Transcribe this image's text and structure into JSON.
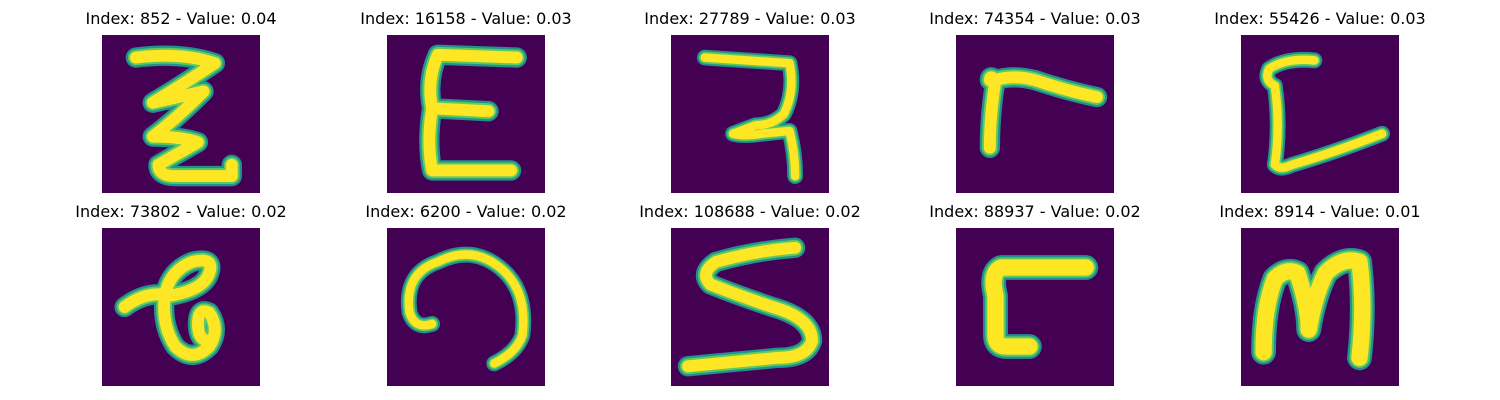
{
  "colormap": {
    "background": "#440154",
    "edge_outer": "#21918c",
    "edge_inner": "#5ec962",
    "stroke_core": "#fde725"
  },
  "panels": [
    {
      "title": "Index: 852 - Value: 0.04",
      "glyph": "zigzag-z"
    },
    {
      "title": "Index: 16158 - Value: 0.03",
      "glyph": "letter-E"
    },
    {
      "title": "Index: 27789 - Value: 0.03",
      "glyph": "hook-7"
    },
    {
      "title": "Index: 74354 - Value: 0.03",
      "glyph": "letter-r"
    },
    {
      "title": "Index: 55426 - Value: 0.03",
      "glyph": "letter-L"
    },
    {
      "title": "Index: 73802 - Value: 0.02",
      "glyph": "letter-a"
    },
    {
      "title": "Index: 6200 - Value: 0.02",
      "glyph": "letter-n"
    },
    {
      "title": "Index: 108688 - Value: 0.02",
      "glyph": "letter-S"
    },
    {
      "title": "Index: 88937 - Value: 0.02",
      "glyph": "letter-F"
    },
    {
      "title": "Index: 8914 - Value: 0.01",
      "glyph": "letter-M"
    }
  ]
}
